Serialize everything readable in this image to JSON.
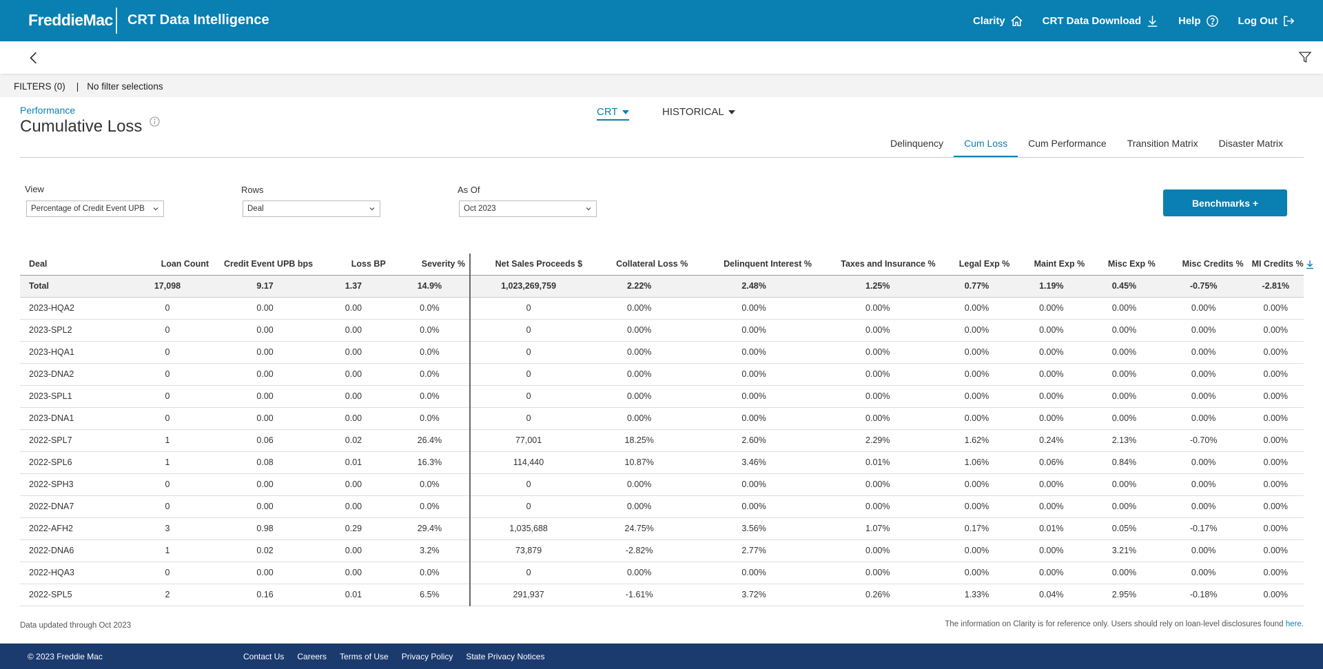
{
  "header": {
    "brand": "FreddieMac",
    "app_title": "CRT Data Intelligence",
    "nav": [
      {
        "label": "Clarity",
        "icon": "home-icon"
      },
      {
        "label": "CRT Data Download",
        "icon": "download-icon"
      },
      {
        "label": "Help",
        "icon": "help-icon"
      },
      {
        "label": "Log Out",
        "icon": "logout-icon"
      }
    ]
  },
  "filters": {
    "count_label": "FILTERS (0)",
    "separator": "|",
    "summary": "No filter selections"
  },
  "page": {
    "breadcrumb": "Performance",
    "title": "Cumulative Loss",
    "dropdown_crt": "CRT",
    "dropdown_historical": "HISTORICAL"
  },
  "tabs": [
    "Delinquency",
    "Cum Loss",
    "Cum Performance",
    "Transition Matrix",
    "Disaster Matrix"
  ],
  "active_tab": "Cum Loss",
  "controls": {
    "view_label": "View",
    "view_value": "Percentage of Credit Event UPB",
    "rows_label": "Rows",
    "rows_value": "Deal",
    "asof_label": "As Of",
    "asof_value": "Oct 2023",
    "benchmarks_label": "Benchmarks +"
  },
  "table": {
    "columns": [
      "Deal",
      "Loan Count",
      "Credit Event UPB bps",
      "Loss BP",
      "Severity %",
      "Net Sales Proceeds $",
      "Collateral Loss %",
      "Delinquent Interest %",
      "Taxes and Insurance %",
      "Legal Exp %",
      "Maint Exp %",
      "Misc Exp %",
      "Misc Credits %",
      "MI Credits %"
    ],
    "total": [
      "Total",
      "17,098",
      "9.17",
      "1.37",
      "14.9%",
      "1,023,269,759",
      "2.22%",
      "2.48%",
      "1.25%",
      "0.77%",
      "1.19%",
      "0.45%",
      "-0.75%",
      "-2.81%"
    ],
    "rows": [
      [
        "2023-HQA2",
        "0",
        "0.00",
        "0.00",
        "0.0%",
        "0",
        "0.00%",
        "0.00%",
        "0.00%",
        "0.00%",
        "0.00%",
        "0.00%",
        "0.00%",
        "0.00%"
      ],
      [
        "2023-SPL2",
        "0",
        "0.00",
        "0.00",
        "0.0%",
        "0",
        "0.00%",
        "0.00%",
        "0.00%",
        "0.00%",
        "0.00%",
        "0.00%",
        "0.00%",
        "0.00%"
      ],
      [
        "2023-HQA1",
        "0",
        "0.00",
        "0.00",
        "0.0%",
        "0",
        "0.00%",
        "0.00%",
        "0.00%",
        "0.00%",
        "0.00%",
        "0.00%",
        "0.00%",
        "0.00%"
      ],
      [
        "2023-DNA2",
        "0",
        "0.00",
        "0.00",
        "0.0%",
        "0",
        "0.00%",
        "0.00%",
        "0.00%",
        "0.00%",
        "0.00%",
        "0.00%",
        "0.00%",
        "0.00%"
      ],
      [
        "2023-SPL1",
        "0",
        "0.00",
        "0.00",
        "0.0%",
        "0",
        "0.00%",
        "0.00%",
        "0.00%",
        "0.00%",
        "0.00%",
        "0.00%",
        "0.00%",
        "0.00%"
      ],
      [
        "2023-DNA1",
        "0",
        "0.00",
        "0.00",
        "0.0%",
        "0",
        "0.00%",
        "0.00%",
        "0.00%",
        "0.00%",
        "0.00%",
        "0.00%",
        "0.00%",
        "0.00%"
      ],
      [
        "2022-SPL7",
        "1",
        "0.06",
        "0.02",
        "26.4%",
        "77,001",
        "18.25%",
        "2.60%",
        "2.29%",
        "1.62%",
        "0.24%",
        "2.13%",
        "-0.70%",
        "0.00%"
      ],
      [
        "2022-SPL6",
        "1",
        "0.08",
        "0.01",
        "16.3%",
        "114,440",
        "10.87%",
        "3.46%",
        "0.01%",
        "1.06%",
        "0.06%",
        "0.84%",
        "0.00%",
        "0.00%"
      ],
      [
        "2022-SPH3",
        "0",
        "0.00",
        "0.00",
        "0.0%",
        "0",
        "0.00%",
        "0.00%",
        "0.00%",
        "0.00%",
        "0.00%",
        "0.00%",
        "0.00%",
        "0.00%"
      ],
      [
        "2022-DNA7",
        "0",
        "0.00",
        "0.00",
        "0.0%",
        "0",
        "0.00%",
        "0.00%",
        "0.00%",
        "0.00%",
        "0.00%",
        "0.00%",
        "0.00%",
        "0.00%"
      ],
      [
        "2022-AFH2",
        "3",
        "0.98",
        "0.29",
        "29.4%",
        "1,035,688",
        "24.75%",
        "3.56%",
        "1.07%",
        "0.17%",
        "0.01%",
        "0.05%",
        "-0.17%",
        "0.00%"
      ],
      [
        "2022-DNA6",
        "1",
        "0.02",
        "0.00",
        "3.2%",
        "73,879",
        "-2.82%",
        "2.77%",
        "0.00%",
        "0.00%",
        "0.00%",
        "3.21%",
        "0.00%",
        "0.00%"
      ],
      [
        "2022-HQA3",
        "0",
        "0.00",
        "0.00",
        "0.0%",
        "0",
        "0.00%",
        "0.00%",
        "0.00%",
        "0.00%",
        "0.00%",
        "0.00%",
        "0.00%",
        "0.00%"
      ],
      [
        "2022-SPL5",
        "2",
        "0.16",
        "0.01",
        "6.5%",
        "291,937",
        "-1.61%",
        "3.72%",
        "0.26%",
        "1.33%",
        "0.04%",
        "2.95%",
        "-0.18%",
        "0.00%"
      ]
    ]
  },
  "notes": {
    "left": "Data updated through Oct 2023",
    "right": "The information on Clarity is for reference only. Users should rely on loan-level disclosures found ",
    "right_link": "here."
  },
  "footer": {
    "copyright": "© 2023 Freddie Mac",
    "links": [
      "Contact Us",
      "Careers",
      "Terms of Use",
      "Privacy Policy",
      "State Privacy Notices"
    ]
  },
  "colors": {
    "primary": "#0a7fb1",
    "footer": "#1b3b6f",
    "filter_bar": "#f3f3f3"
  }
}
